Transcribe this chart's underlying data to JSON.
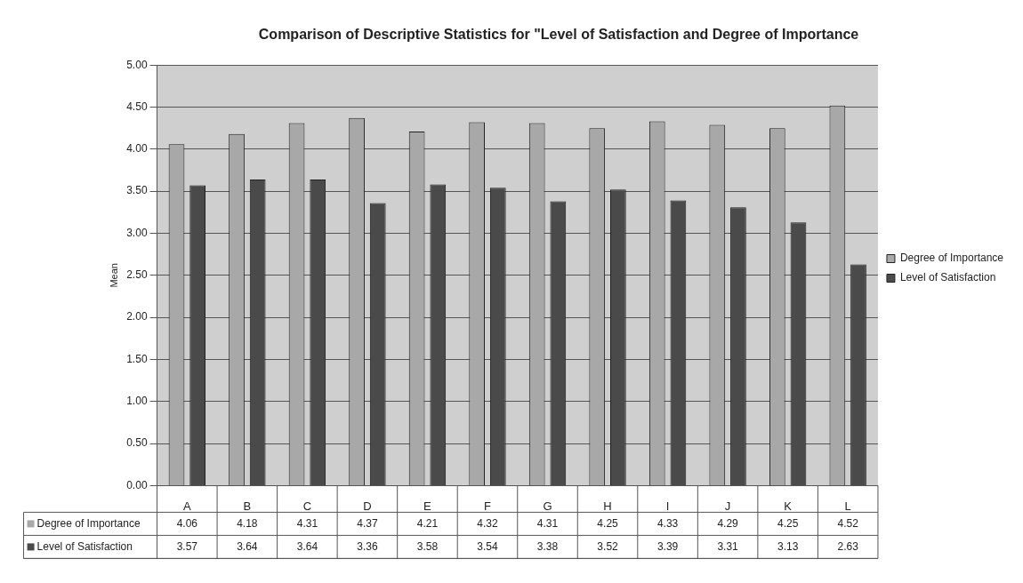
{
  "chart_data": {
    "type": "bar",
    "title": "Comparison of Descriptive Statistics for \"Level of Satisfaction and Degree of Importance",
    "ylabel": "Mean",
    "categories": [
      "A",
      "B",
      "C",
      "D",
      "E",
      "F",
      "G",
      "H",
      "I",
      "J",
      "K",
      "L"
    ],
    "series": [
      {
        "name": "Degree of Importance",
        "color": "#a8a8a8",
        "values": [
          4.06,
          4.18,
          4.31,
          4.37,
          4.21,
          4.32,
          4.31,
          4.25,
          4.33,
          4.29,
          4.25,
          4.52
        ]
      },
      {
        "name": "Level of Satisfaction",
        "color": "#4a4a4a",
        "values": [
          3.57,
          3.64,
          3.64,
          3.36,
          3.58,
          3.54,
          3.38,
          3.52,
          3.39,
          3.31,
          3.13,
          2.63
        ]
      }
    ],
    "ylim": [
      0,
      5
    ],
    "yticks": [
      {
        "value": 0,
        "label": "0.00"
      },
      {
        "value": 0.5,
        "label": "0.50"
      },
      {
        "value": 1,
        "label": "1.00"
      },
      {
        "value": 1.5,
        "label": "1.50"
      },
      {
        "value": 2,
        "label": "2.00"
      },
      {
        "value": 2.5,
        "label": "2.50"
      },
      {
        "value": 3,
        "label": "3.00"
      },
      {
        "value": 3.5,
        "label": "3.50"
      },
      {
        "value": 4,
        "label": "4.00"
      },
      {
        "value": 4.5,
        "label": "4.50"
      },
      {
        "value": 5,
        "label": "5.00"
      }
    ],
    "grid": "y",
    "legend": "right",
    "data_labels": true
  }
}
